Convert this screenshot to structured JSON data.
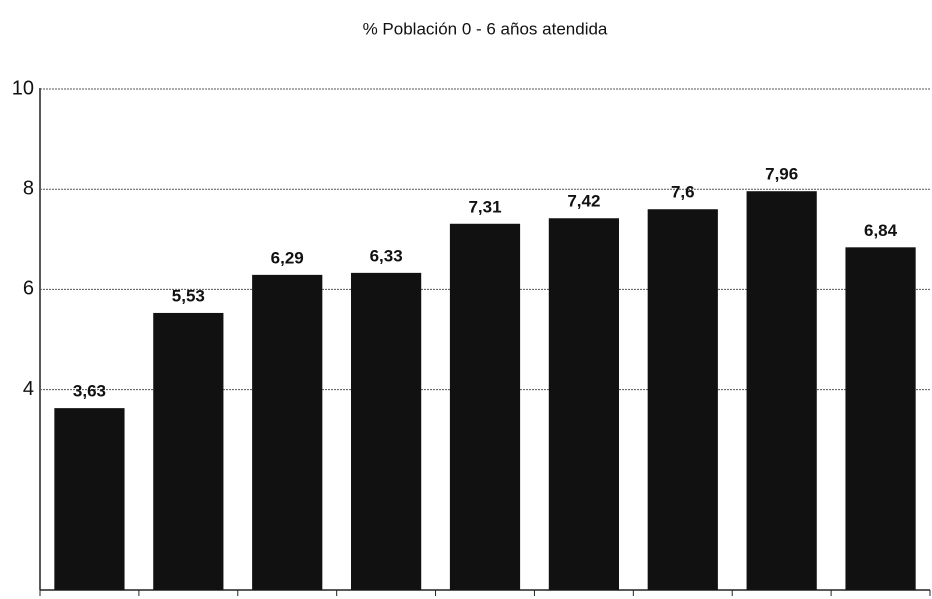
{
  "chart_data": {
    "type": "bar",
    "title": "% Población 0 - 6 años atendida",
    "categories": [
      null,
      null,
      null,
      null,
      null,
      null,
      null,
      null,
      null
    ],
    "values": [
      3.63,
      5.53,
      6.29,
      6.33,
      7.31,
      7.42,
      7.6,
      7.96,
      6.84
    ],
    "value_labels": [
      "3,63",
      "5,53",
      "6,29",
      "6,33",
      "7,31",
      "7,42",
      "7,6",
      "7,96",
      "6,84"
    ],
    "color": "#111111",
    "ylim": [
      0,
      10
    ],
    "yticks": [
      4,
      6,
      8,
      10
    ],
    "grid": true
  }
}
